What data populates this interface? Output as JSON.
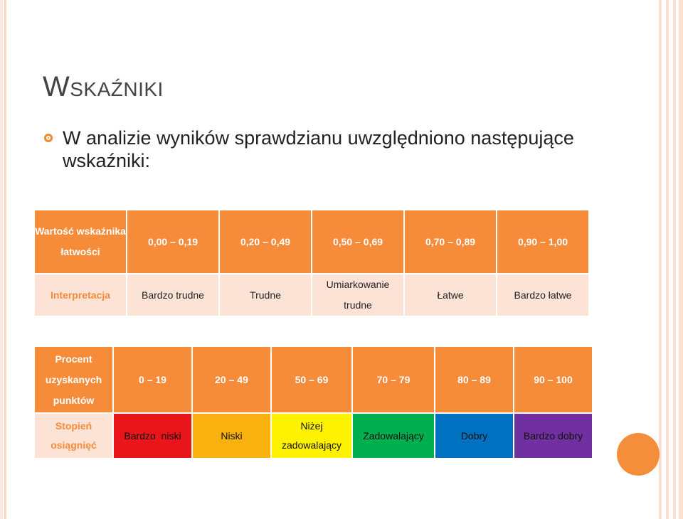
{
  "title": "Wskaźniki",
  "bullet": "W analizie wyników sprawdzianu uwzględniono następujące wskaźniki:",
  "table1": {
    "row1_label": "Wartość wskaźnika łatwości",
    "row1_values": [
      "0,00 – 0,19",
      "0,20 – 0,49",
      "0,50 – 0,69",
      "0,70 – 0,89",
      "0,90 – 1,00"
    ],
    "row2_label": "Interpretacja",
    "row2_values": [
      "Bardzo trudne",
      "Trudne",
      "Umiarkowanie trudne",
      "Łatwe",
      "Bardzo łatwe"
    ]
  },
  "table2": {
    "row1_label": "Procent uzyskanych punktów",
    "row1_values": [
      "0 – 19",
      "20 – 49",
      "50 – 69",
      "70 – 79",
      "80 – 89",
      "90 – 100"
    ],
    "row2_label": "Stopień osiągnięć",
    "row2_values": [
      "Bardzo  niski",
      "Niski",
      "Niżej zadowalający",
      "Zadowalający",
      "Dobry",
      "Bardzo dobry"
    ],
    "row2_colors": [
      "#e8161b",
      "#f9b10f",
      "#fff200",
      "#00b050",
      "#0070c0",
      "#7030a0"
    ]
  }
}
